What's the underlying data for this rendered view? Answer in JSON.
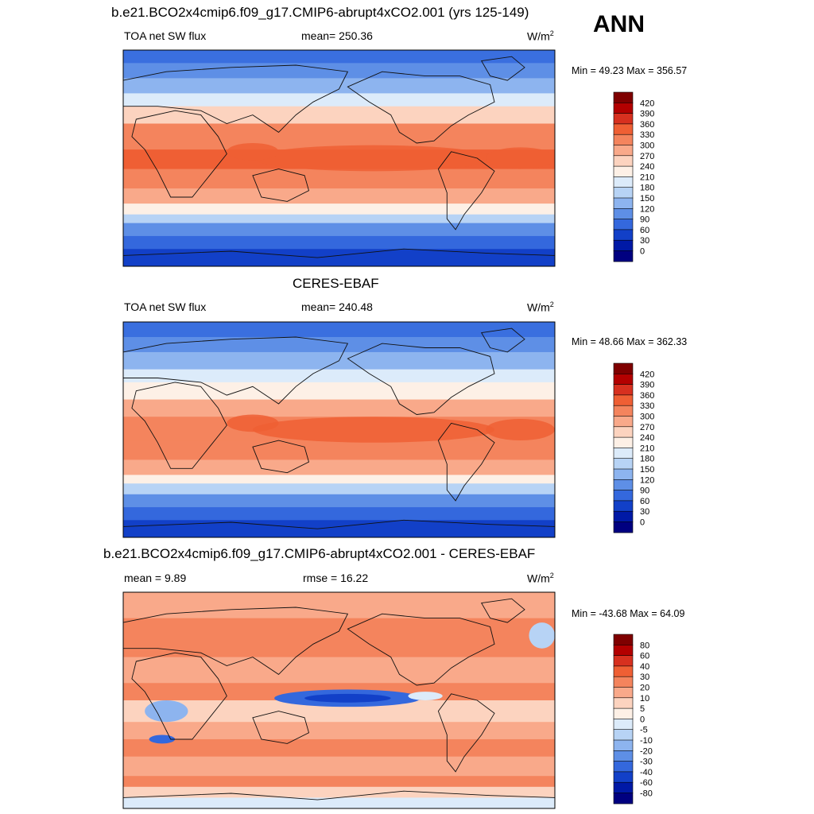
{
  "season_label": "ANN",
  "panels": [
    {
      "title": "b.e21.BCO2x4cmip6.f09_g17.CMIP6-abrupt4xCO2.001 (yrs 125-149)",
      "left_label": "TOA net SW flux",
      "center_label": "mean= 250.36",
      "units_base": "W/m",
      "units_exp": "2",
      "minmax": "Min =  49.23 Max = 356.57"
    },
    {
      "title": "CERES-EBAF",
      "left_label": "TOA net SW flux",
      "center_label": "mean= 240.48",
      "units_base": "W/m",
      "units_exp": "2",
      "minmax": "Min =  48.66 Max = 362.33"
    },
    {
      "title": "b.e21.BCO2x4cmip6.f09_g17.CMIP6-abrupt4xCO2.001 - CERES-EBAF",
      "left_label": "mean =   9.89",
      "center_label": "rmse =  16.22",
      "units_base": "W/m",
      "units_exp": "2",
      "minmax": "Min = -43.68 Max =  64.09"
    }
  ],
  "chart_data": [
    {
      "type": "heatmap",
      "title": "b.e21.BCO2x4cmip6.f09_g17.CMIP6-abrupt4xCO2.001 (yrs 125-149)",
      "variable": "TOA net SW flux",
      "units": "W/m2",
      "mean": 250.36,
      "min": 49.23,
      "max": 356.57,
      "colorbar_levels": [
        420,
        390,
        360,
        330,
        300,
        270,
        240,
        210,
        180,
        150,
        120,
        90,
        60,
        30,
        0
      ],
      "colorbar_colors": [
        "#7f0000",
        "#b30000",
        "#d7301f",
        "#ef5f34",
        "#f4845d",
        "#f9a98a",
        "#fcd3bf",
        "#fdf0e6",
        "#dcebfa",
        "#b7d3f5",
        "#8db4ef",
        "#5e8fe6",
        "#3468dd",
        "#1240c8",
        "#0019a6",
        "#000080"
      ]
    },
    {
      "type": "heatmap",
      "title": "CERES-EBAF",
      "variable": "TOA net SW flux",
      "units": "W/m2",
      "mean": 240.48,
      "min": 48.66,
      "max": 362.33,
      "colorbar_levels": [
        420,
        390,
        360,
        330,
        300,
        270,
        240,
        210,
        180,
        150,
        120,
        90,
        60,
        30,
        0
      ],
      "colorbar_colors": [
        "#7f0000",
        "#b30000",
        "#d7301f",
        "#ef5f34",
        "#f4845d",
        "#f9a98a",
        "#fcd3bf",
        "#fdf0e6",
        "#dcebfa",
        "#b7d3f5",
        "#8db4ef",
        "#5e8fe6",
        "#3468dd",
        "#1240c8",
        "#0019a6",
        "#000080"
      ]
    },
    {
      "type": "heatmap",
      "title": "b.e21.BCO2x4cmip6.f09_g17.CMIP6-abrupt4xCO2.001 - CERES-EBAF",
      "units": "W/m2",
      "mean": 9.89,
      "rmse": 16.22,
      "min": -43.68,
      "max": 64.09,
      "colorbar_levels": [
        80,
        60,
        40,
        30,
        20,
        10,
        5,
        0,
        -5,
        -10,
        -20,
        -30,
        -40,
        -60,
        -80
      ],
      "colorbar_colors": [
        "#7f0000",
        "#b30000",
        "#d7301f",
        "#ef5f34",
        "#f4845d",
        "#f9a98a",
        "#fcd3bf",
        "#fdf0e6",
        "#dcebfa",
        "#b7d3f5",
        "#8db4ef",
        "#5e8fe6",
        "#3468dd",
        "#1240c8",
        "#0019a6",
        "#000080"
      ]
    }
  ]
}
